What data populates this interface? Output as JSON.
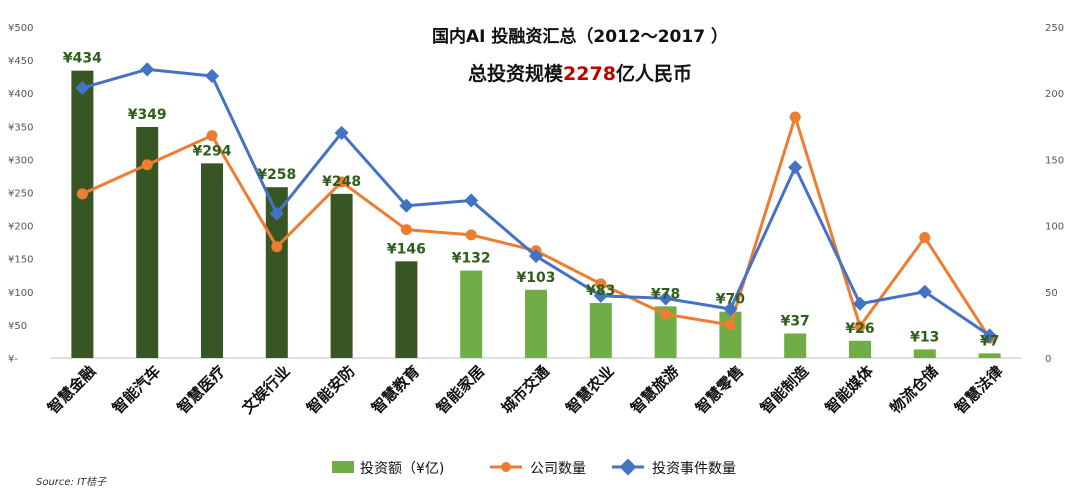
{
  "chart_data": {
    "type": "bar",
    "title": "国内AI 投融资汇总（2012～2017 ）",
    "subtitle_prefix": "总投资规模",
    "subtitle_highlight": "2278",
    "subtitle_suffix": "亿人民币",
    "categories": [
      "智慧金融",
      "智能汽车",
      "智慧医疗",
      "文娱行业",
      "智能安防",
      "智慧教育",
      "智能家居",
      "城市交通",
      "智慧农业",
      "智慧旅游",
      "智慧零售",
      "智能制造",
      "智能媒体",
      "物流仓储",
      "智慧法律"
    ],
    "series": [
      {
        "name": "投资额（¥亿)",
        "type": "bar",
        "axis": "left",
        "values": [
          434,
          349,
          294,
          258,
          248,
          146,
          132,
          103,
          83,
          78,
          70,
          37,
          26,
          13,
          7
        ],
        "data_labels": [
          "¥434",
          "¥349",
          "¥294",
          "¥258",
          "¥248",
          "¥146",
          "¥132",
          "¥103",
          "¥83",
          "¥78",
          "¥70",
          "¥37",
          "¥26",
          "¥13",
          "¥7"
        ]
      },
      {
        "name": "公司数量",
        "type": "line",
        "axis": "right",
        "values": [
          124,
          146,
          168,
          84,
          133,
          97,
          93,
          81,
          56,
          33,
          25,
          182,
          24,
          91,
          15
        ]
      },
      {
        "name": "投资事件数量",
        "type": "line",
        "axis": "right",
        "values": [
          204,
          218,
          213,
          109,
          170,
          115,
          119,
          77,
          47,
          45,
          37,
          144,
          41,
          50,
          17
        ]
      }
    ],
    "y_left": {
      "min": 0,
      "max": 500,
      "step": 50,
      "tick_labels": [
        "¥-",
        "¥50",
        "¥100",
        "¥150",
        "¥200",
        "¥250",
        "¥300",
        "¥350",
        "¥400",
        "¥450",
        "¥500"
      ]
    },
    "y_right": {
      "min": 0,
      "max": 250,
      "step": 50,
      "tick_labels": [
        "0",
        "50",
        "100",
        "150",
        "200",
        "250"
      ]
    },
    "legend_position": "bottom",
    "grid": false,
    "source": "Source: IT桔子"
  },
  "colors": {
    "bar_dark": "#375623",
    "bar_light": "#70ad47",
    "line_companies": "#ed7d31",
    "line_events": "#4472c4",
    "label_text": "#2e5e1a"
  }
}
